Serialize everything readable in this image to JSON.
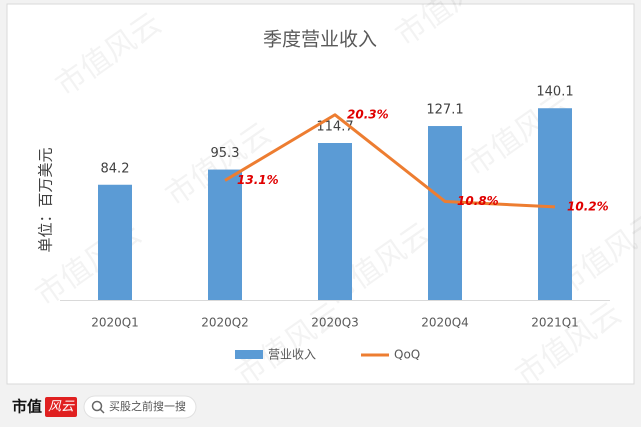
{
  "chart_data": {
    "type": "bar",
    "title": "季度营业收入",
    "y_label": "单位：百万美元",
    "categories": [
      "2020Q1",
      "2020Q2",
      "2020Q3",
      "2020Q4",
      "2021Q1"
    ],
    "series": [
      {
        "name": "营业收入",
        "type": "bar",
        "color": "#5b9bd5",
        "values": [
          84.2,
          95.3,
          114.7,
          127.1,
          140.1
        ]
      },
      {
        "name": "QoQ",
        "type": "line",
        "axis": "y2",
        "color": "#ed7d31",
        "values": [
          null,
          13.1,
          20.3,
          10.8,
          10.2
        ],
        "value_labels": [
          null,
          "13.1%",
          "20.3%",
          "10.8%",
          "10.2%"
        ]
      }
    ],
    "ylim": [
      0,
      160
    ],
    "y2lim": [
      0,
      24
    ],
    "legend": "bottom"
  },
  "watermark": "市值风云",
  "footer": {
    "brand": "市值",
    "brand_mark": "风云",
    "search": "买股之前搜一搜"
  }
}
